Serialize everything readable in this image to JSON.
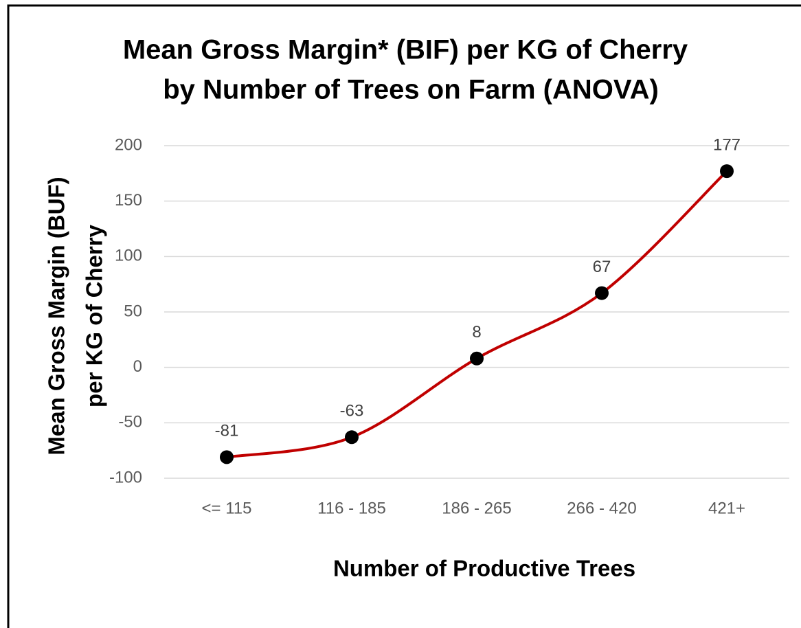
{
  "chart_data": {
    "type": "line",
    "title": [
      "Mean Gross Margin* (BIF) per KG of Cherry",
      "by Number of Trees on Farm (ANOVA)"
    ],
    "x_label": "Number of Productive Trees",
    "y_label": [
      "Mean Gross Margin (BUF)",
      "per KG of Cherry"
    ],
    "categories": [
      "<= 115",
      "116 - 185",
      "186 - 265",
      "266 - 420",
      "421+"
    ],
    "values": [
      -81,
      -63,
      8,
      67,
      177
    ],
    "color": "#c00000",
    "ylim": [
      -100,
      200
    ],
    "yticks": [
      -100,
      -50,
      0,
      50,
      100,
      150,
      200
    ],
    "grid": true
  }
}
